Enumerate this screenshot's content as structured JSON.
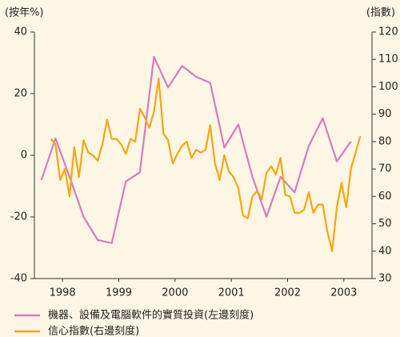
{
  "chart_data": {
    "type": "line",
    "y_label": "(按年%)",
    "y2_label": "(指數)",
    "xlim": [
      1998,
      2004
    ],
    "xticks": [
      {
        "value": 1998.5,
        "label": "1998"
      },
      {
        "value": 1999.5,
        "label": "1999"
      },
      {
        "value": 2000.5,
        "label": "2000"
      },
      {
        "value": 2001.5,
        "label": "2001"
      },
      {
        "value": 2002.5,
        "label": "2002"
      },
      {
        "value": 2003.5,
        "label": "2003"
      }
    ],
    "ylim": [
      -40,
      40
    ],
    "yticks": [
      -40,
      -20,
      0,
      20,
      40
    ],
    "y2lim": [
      30,
      120
    ],
    "y2ticks": [
      30,
      40,
      50,
      60,
      70,
      80,
      90,
      100,
      110,
      120
    ],
    "grid": false,
    "series": [
      {
        "name": "機器、設備及電腦軟件的實質投資(左邊刻度)",
        "color": "#d67bc0",
        "axis": "y",
        "x": [
          1998.125,
          1998.375,
          1998.625,
          1998.875,
          1999.125,
          1999.375,
          1999.625,
          1999.875,
          2000.125,
          2000.375,
          2000.625,
          2000.875,
          2001.125,
          2001.375,
          2001.625,
          2001.875,
          2002.125,
          2002.375,
          2002.625,
          2002.875,
          2003.125,
          2003.375,
          2003.625
        ],
        "values": [
          -8,
          5.5,
          -7,
          -20,
          -27.5,
          -28.5,
          -8.5,
          -5.5,
          32,
          22,
          29,
          25.5,
          23.5,
          2.5,
          10,
          -7,
          -20,
          -7,
          -12,
          3,
          12,
          -2,
          4.5
        ]
      },
      {
        "name": "信心指數(右邊刻度)",
        "color": "#f3a712",
        "axis": "y2",
        "x": [
          1998.292,
          1998.375,
          1998.458,
          1998.542,
          1998.625,
          1998.708,
          1998.792,
          1998.875,
          1998.958,
          1999.042,
          1999.125,
          1999.208,
          1999.292,
          1999.375,
          1999.458,
          1999.542,
          1999.625,
          1999.708,
          1999.792,
          1999.875,
          1999.958,
          2000.042,
          2000.125,
          2000.208,
          2000.292,
          2000.375,
          2000.458,
          2000.542,
          2000.625,
          2000.708,
          2000.792,
          2000.875,
          2000.958,
          2001.042,
          2001.125,
          2001.208,
          2001.292,
          2001.375,
          2001.458,
          2001.542,
          2001.625,
          2001.708,
          2001.792,
          2001.875,
          2001.958,
          2002.042,
          2002.125,
          2002.208,
          2002.292,
          2002.375,
          2002.458,
          2002.542,
          2002.625,
          2002.708,
          2002.792,
          2002.875,
          2002.958,
          2003.042,
          2003.125,
          2003.208,
          2003.292,
          2003.375,
          2003.458,
          2003.542,
          2003.625,
          2003.708,
          2003.792
        ],
        "values": [
          81,
          79,
          66,
          70,
          60,
          78,
          67,
          80.5,
          76,
          75,
          73,
          79,
          88,
          81,
          81,
          79,
          75.5,
          81,
          80,
          92,
          89,
          85,
          91,
          103,
          83,
          80.5,
          72,
          75.5,
          78.5,
          80,
          74,
          77,
          76,
          77,
          86,
          72,
          66,
          75,
          69,
          67,
          63,
          53,
          52,
          60,
          62,
          59,
          68.5,
          71,
          68,
          74,
          60.5,
          60,
          54,
          54,
          55,
          61.5,
          54,
          57,
          57,
          47,
          40,
          56,
          65,
          56,
          70,
          76,
          82
        ]
      }
    ]
  }
}
